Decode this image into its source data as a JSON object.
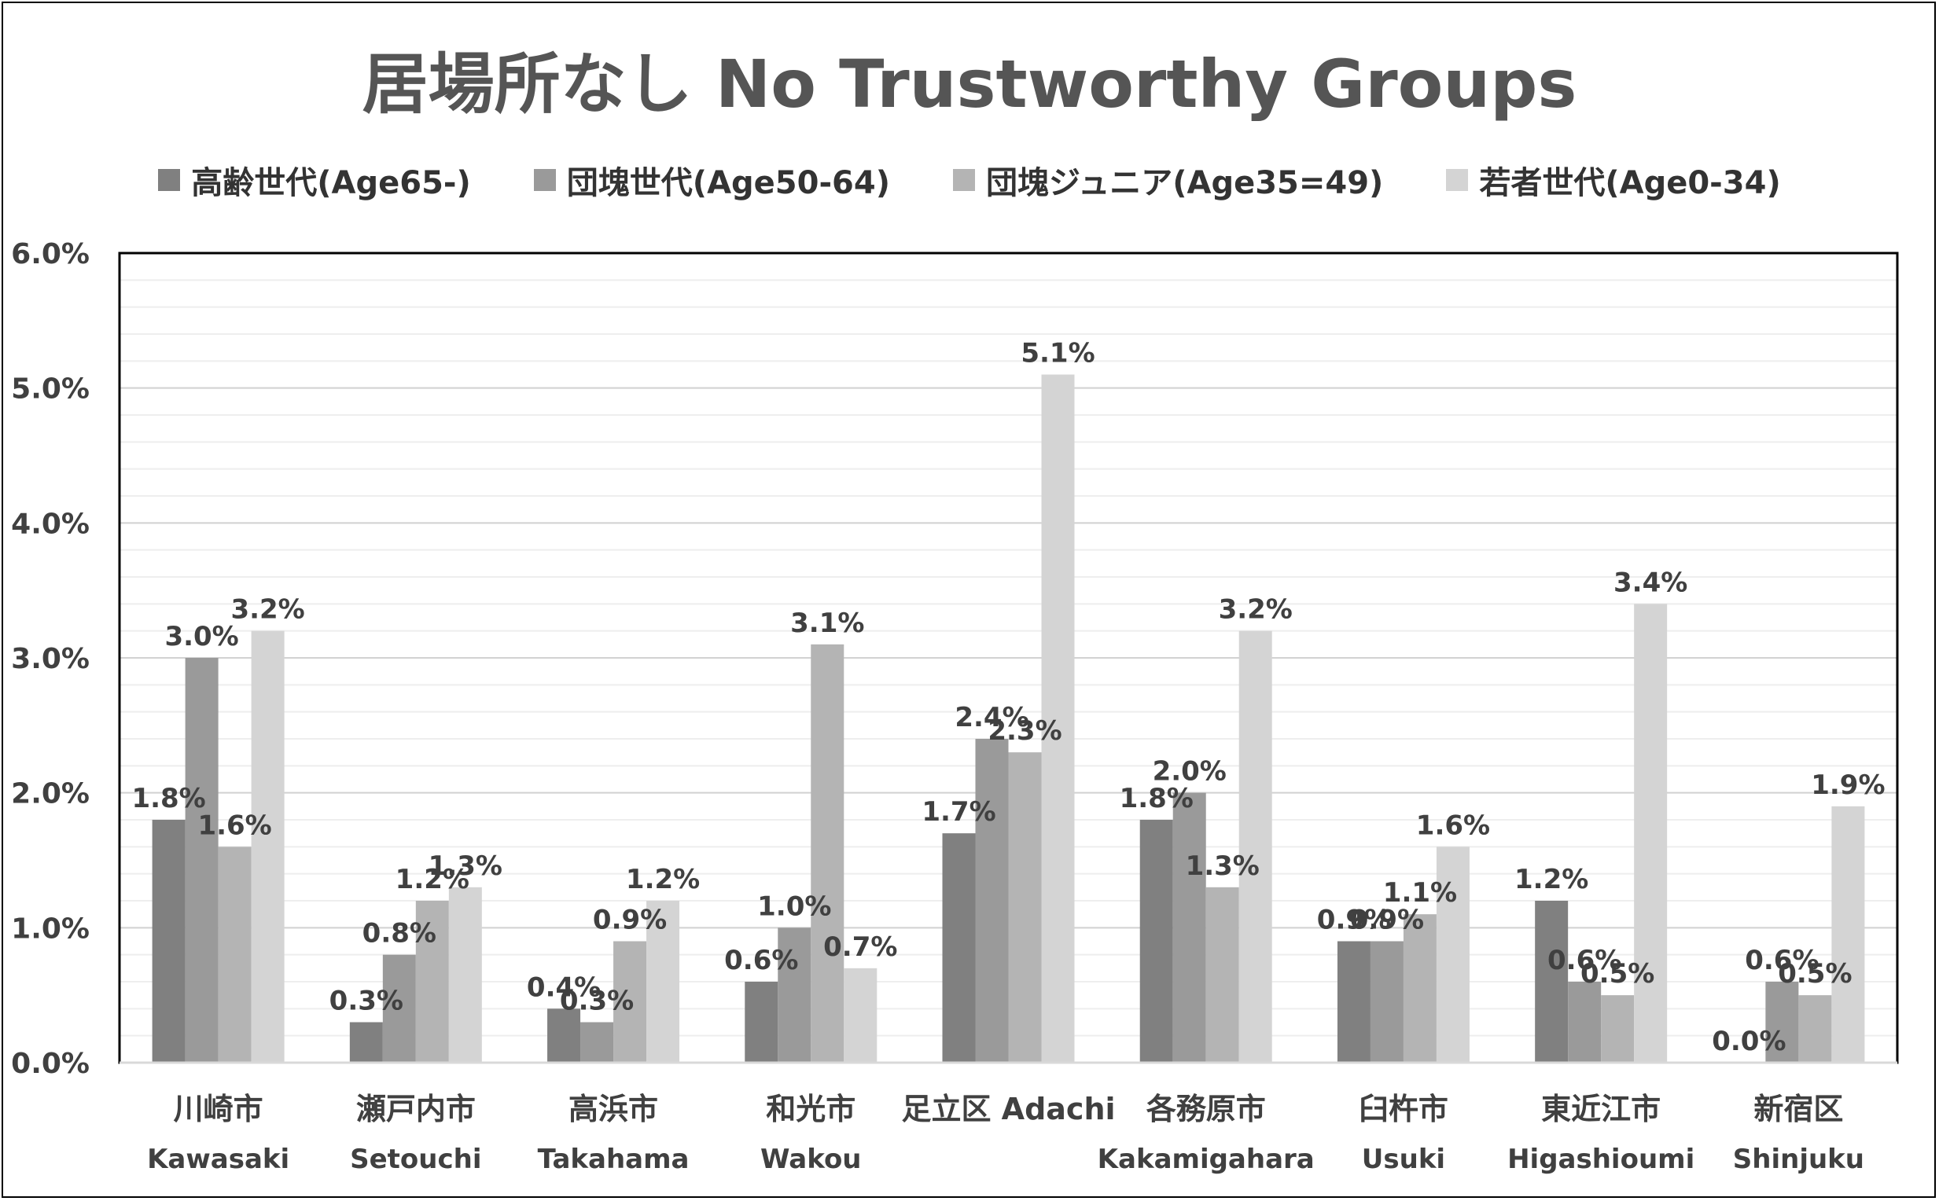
{
  "chart_data": {
    "type": "bar",
    "title": "居場所なし No Trustworthy Groups",
    "ylim": [
      0,
      6.0
    ],
    "yticks": [
      "0.0%",
      "1.0%",
      "2.0%",
      "3.0%",
      "4.0%",
      "5.0%",
      "6.0%"
    ],
    "categories": [
      {
        "jp": "川崎市",
        "en": "Kawasaki"
      },
      {
        "jp": "瀬戸内市",
        "en": "Setouchi"
      },
      {
        "jp": "高浜市",
        "en": "Takahama"
      },
      {
        "jp": "和光市",
        "en": "Wakou"
      },
      {
        "jp": "足立区 Adachi",
        "en": ""
      },
      {
        "jp": "各務原市",
        "en": "Kakamigahara"
      },
      {
        "jp": "臼杵市",
        "en": "Usuki"
      },
      {
        "jp": "東近江市",
        "en": "Higashioumi"
      },
      {
        "jp": "新宿区",
        "en": "Shinjuku"
      }
    ],
    "series": [
      {
        "name": "高齢世代(Age65-)",
        "color": "#808080",
        "values": [
          1.8,
          0.3,
          0.4,
          0.6,
          1.7,
          1.8,
          0.9,
          1.2,
          0.0
        ]
      },
      {
        "name": "団塊世代(Age50-64)",
        "color": "#9a9a9a",
        "values": [
          3.0,
          0.8,
          0.3,
          1.0,
          2.4,
          2.0,
          0.9,
          0.6,
          0.6
        ]
      },
      {
        "name": "団塊ジュニア(Age35=49)",
        "color": "#b4b4b4",
        "values": [
          1.6,
          1.2,
          0.9,
          3.1,
          2.3,
          1.3,
          1.1,
          0.5,
          0.5
        ]
      },
      {
        "name": "若者世代(Age0-34)",
        "color": "#d4d4d4",
        "values": [
          3.2,
          1.3,
          1.2,
          0.7,
          5.1,
          3.2,
          1.6,
          3.4,
          1.9
        ]
      }
    ],
    "data_labels": [
      [
        "1.8%",
        "0.3%",
        "0.4%",
        "0.6%",
        "1.7%",
        "1.8%",
        "0.9%",
        "1.2%",
        "0.0%"
      ],
      [
        "3.0%",
        "0.8%",
        "0.3%",
        "1.0%",
        "2.4%",
        "2.0%",
        "0.9%",
        "0.6%",
        "0.6%"
      ],
      [
        "1.6%",
        "1.2%",
        "0.9%",
        "3.1%",
        "2.3%",
        "1.3%",
        "1.1%",
        "0.5%",
        "0.5%"
      ],
      [
        "3.2%",
        "1.3%",
        "1.2%",
        "0.7%",
        "5.1%",
        "3.2%",
        "1.6%",
        "3.4%",
        "1.9%"
      ]
    ],
    "legend_position": "top",
    "grid": true
  }
}
